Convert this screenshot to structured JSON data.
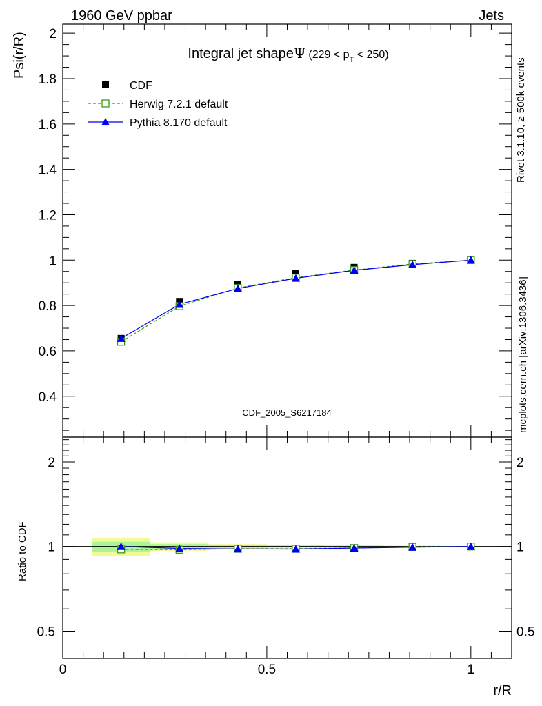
{
  "header": {
    "left": "1960 GeV ppbar",
    "right": "Jets"
  },
  "title": {
    "main": "Integral jet shape",
    "symbol": "Ψ",
    "range_open": "(229 < p",
    "range_sub": "T",
    "range_close": " < 250)"
  },
  "side": {
    "rivet": "Rivet 3.1.10, ≥ 500k events",
    "mcplots": "mcplots.cern.ch [arXiv:1306.3436]"
  },
  "watermark": "CDF_2005_S6217184",
  "chart_data": [
    {
      "type": "line",
      "ylabel": "Psi(r/R)",
      "xlim": [
        0,
        1.1
      ],
      "ylim": [
        0.22,
        2.04
      ],
      "y_ticks": [
        0.4,
        0.6,
        0.8,
        1,
        1.2,
        1.4,
        1.6,
        1.8,
        2
      ],
      "y_tick_labels": [
        "0.4",
        "0.6",
        "0.8",
        "1",
        "1.2",
        "1.4",
        "1.6",
        "1.8",
        "2"
      ],
      "legend_position": "top-left",
      "x": [
        0.143,
        0.286,
        0.429,
        0.571,
        0.714,
        0.857,
        1.0
      ],
      "series": [
        {
          "name": "CDF",
          "color": "#000000",
          "marker": "square",
          "values": [
            0.655,
            0.818,
            0.893,
            0.94,
            0.968,
            0.986,
            1.0
          ]
        },
        {
          "name": "Herwig 7.2.1 default",
          "color": "#3a9a1a",
          "marker": "open-square",
          "dash": true,
          "values": [
            0.64,
            0.797,
            0.877,
            0.923,
            0.956,
            0.983,
            1.0
          ]
        },
        {
          "name": "Pythia 8.170 default",
          "color": "#0000ee",
          "marker": "triangle",
          "values": [
            0.655,
            0.805,
            0.875,
            0.92,
            0.955,
            0.98,
            1.0
          ]
        }
      ]
    },
    {
      "type": "line",
      "ylabel": "Ratio to CDF",
      "xlabel": "r/R",
      "xlim": [
        0,
        1.1
      ],
      "ylim": [
        0.4,
        2.45
      ],
      "y_ticks": [
        0.5,
        1,
        2
      ],
      "y_tick_labels": [
        "0.5",
        "1",
        "2"
      ],
      "x_ticks": [
        0,
        0.5,
        1
      ],
      "x_tick_labels": [
        "0",
        "0.5",
        "1"
      ],
      "x": [
        0.143,
        0.286,
        0.429,
        0.571,
        0.714,
        0.857,
        1.0
      ],
      "band": {
        "x_edges": [
          0.071,
          0.214,
          0.357,
          0.5,
          0.643,
          0.786,
          0.929,
          1.071
        ],
        "outer": [
          0.075,
          0.035,
          0.02,
          0.015,
          0.01,
          0.008,
          0.003
        ],
        "inner": [
          0.04,
          0.02,
          0.012,
          0.008,
          0.006,
          0.004,
          0.002
        ],
        "outer_color": "#f4f996",
        "inner_color": "#a8f59a"
      },
      "series": [
        {
          "name": "Herwig 7.2.1 default",
          "color": "#3a9a1a",
          "marker": "open-square",
          "dash": true,
          "values": [
            0.977,
            0.974,
            0.982,
            0.982,
            0.988,
            0.997,
            1.0
          ]
        },
        {
          "name": "Pythia 8.170 default",
          "color": "#0000ee",
          "marker": "triangle",
          "values": [
            1.0,
            0.984,
            0.98,
            0.979,
            0.987,
            0.994,
            1.0
          ]
        }
      ]
    }
  ]
}
